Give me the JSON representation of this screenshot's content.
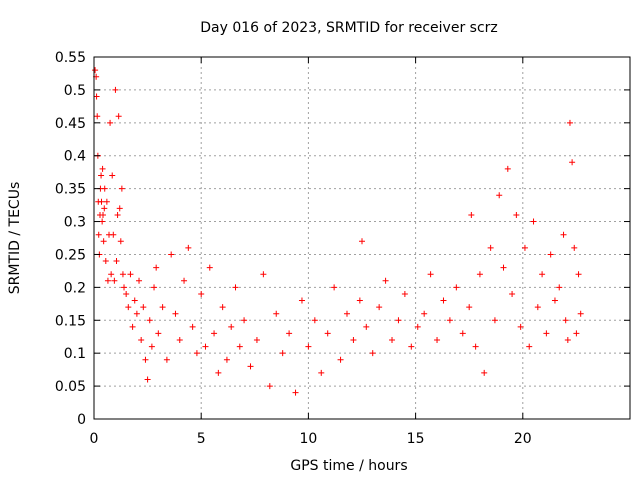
{
  "chart_data": {
    "type": "scatter",
    "title": "Day 016 of 2023, SRMTID for receiver scrz",
    "xlabel": "GPS time / hours",
    "ylabel": "SRMTID / TECUs",
    "xlim": [
      0,
      25
    ],
    "ylim": [
      0,
      0.55
    ],
    "xticks": [
      0,
      5,
      10,
      15,
      20
    ],
    "xtick_labels": [
      "0",
      "5",
      "10",
      "15",
      "20"
    ],
    "yticks": [
      0,
      0.05,
      0.1,
      0.15,
      0.2,
      0.25,
      0.3,
      0.35,
      0.4,
      0.45,
      0.5,
      0.55
    ],
    "ytick_labels": [
      "0",
      "0.05",
      "0.1",
      "0.15",
      "0.2",
      "0.25",
      "0.3",
      "0.35",
      "0.4",
      "0.45",
      "0.5",
      "0.55"
    ],
    "grid": true,
    "marker": "plus",
    "series_color": "#ff0000",
    "series": [
      {
        "name": "SRMTID",
        "x": [
          0.05,
          0.1,
          0.12,
          0.15,
          0.18,
          0.2,
          0.22,
          0.25,
          0.28,
          0.3,
          0.33,
          0.35,
          0.38,
          0.4,
          0.42,
          0.45,
          0.48,
          0.5,
          0.55,
          0.6,
          0.65,
          0.7,
          0.75,
          0.8,
          0.85,
          0.9,
          0.95,
          1.0,
          1.05,
          1.1,
          1.15,
          1.2,
          1.25,
          1.3,
          1.35,
          1.4,
          1.5,
          1.6,
          1.7,
          1.8,
          1.9,
          2.0,
          2.1,
          2.2,
          2.3,
          2.4,
          2.5,
          2.6,
          2.7,
          2.8,
          2.9,
          3.0,
          3.2,
          3.4,
          3.6,
          3.8,
          4.0,
          4.2,
          4.4,
          4.6,
          4.8,
          5.0,
          5.2,
          5.4,
          5.6,
          5.8,
          6.0,
          6.2,
          6.4,
          6.6,
          6.8,
          7.0,
          7.3,
          7.6,
          7.9,
          8.2,
          8.5,
          8.8,
          9.1,
          9.4,
          9.7,
          10.0,
          10.3,
          10.6,
          10.9,
          11.2,
          11.5,
          11.8,
          12.1,
          12.4,
          12.5,
          12.7,
          13.0,
          13.3,
          13.6,
          13.9,
          14.2,
          14.5,
          14.8,
          15.1,
          15.4,
          15.7,
          16.0,
          16.3,
          16.6,
          16.9,
          17.2,
          17.5,
          17.6,
          17.8,
          18.0,
          18.2,
          18.5,
          18.7,
          18.9,
          19.1,
          19.3,
          19.5,
          19.7,
          19.9,
          20.1,
          20.3,
          20.5,
          20.7,
          20.9,
          21.1,
          21.3,
          21.5,
          21.7,
          21.9,
          22.0,
          22.1,
          22.2,
          22.3,
          22.4,
          22.5,
          22.6,
          22.7
        ],
        "y": [
          0.53,
          0.52,
          0.49,
          0.46,
          0.4,
          0.33,
          0.28,
          0.25,
          0.31,
          0.35,
          0.37,
          0.33,
          0.3,
          0.38,
          0.31,
          0.27,
          0.32,
          0.35,
          0.24,
          0.33,
          0.21,
          0.28,
          0.45,
          0.22,
          0.37,
          0.28,
          0.21,
          0.5,
          0.24,
          0.31,
          0.46,
          0.32,
          0.27,
          0.35,
          0.22,
          0.2,
          0.19,
          0.17,
          0.22,
          0.14,
          0.18,
          0.16,
          0.21,
          0.12,
          0.17,
          0.09,
          0.06,
          0.15,
          0.11,
          0.2,
          0.23,
          0.13,
          0.17,
          0.09,
          0.25,
          0.16,
          0.12,
          0.21,
          0.26,
          0.14,
          0.1,
          0.19,
          0.11,
          0.23,
          0.13,
          0.07,
          0.17,
          0.09,
          0.14,
          0.2,
          0.11,
          0.15,
          0.08,
          0.12,
          0.22,
          0.05,
          0.16,
          0.1,
          0.13,
          0.04,
          0.18,
          0.11,
          0.15,
          0.07,
          0.13,
          0.2,
          0.09,
          0.16,
          0.12,
          0.18,
          0.27,
          0.14,
          0.1,
          0.17,
          0.21,
          0.12,
          0.15,
          0.19,
          0.11,
          0.14,
          0.16,
          0.22,
          0.12,
          0.18,
          0.15,
          0.2,
          0.13,
          0.17,
          0.31,
          0.11,
          0.22,
          0.07,
          0.26,
          0.15,
          0.34,
          0.23,
          0.38,
          0.19,
          0.31,
          0.14,
          0.26,
          0.11,
          0.3,
          0.17,
          0.22,
          0.13,
          0.25,
          0.18,
          0.2,
          0.28,
          0.15,
          0.12,
          0.45,
          0.39,
          0.26,
          0.13,
          0.22,
          0.16
        ]
      }
    ]
  }
}
